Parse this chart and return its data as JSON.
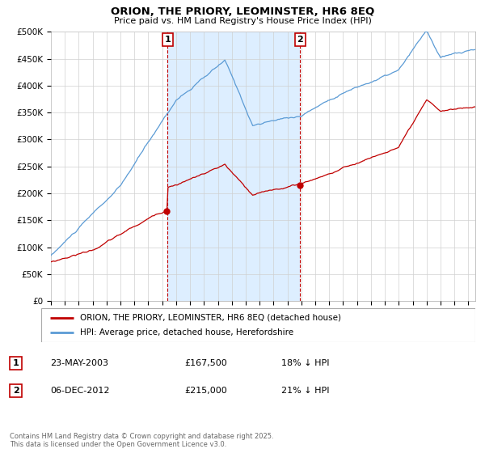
{
  "title": "ORION, THE PRIORY, LEOMINSTER, HR6 8EQ",
  "subtitle": "Price paid vs. HM Land Registry's House Price Index (HPI)",
  "ylim": [
    0,
    500000
  ],
  "yticks": [
    0,
    50000,
    100000,
    150000,
    200000,
    250000,
    300000,
    350000,
    400000,
    450000,
    500000
  ],
  "ytick_labels": [
    "£0",
    "£50K",
    "£100K",
    "£150K",
    "£200K",
    "£250K",
    "£300K",
    "£350K",
    "£400K",
    "£450K",
    "£500K"
  ],
  "hpi_color": "#5b9bd5",
  "price_color": "#c00000",
  "annotation_box_color": "#c00000",
  "grid_color": "#d0d0d0",
  "background_color": "#ffffff",
  "shade_color": "#ddeeff",
  "legend_label_price": "ORION, THE PRIORY, LEOMINSTER, HR6 8EQ (detached house)",
  "legend_label_hpi": "HPI: Average price, detached house, Herefordshire",
  "annotation1_label": "1",
  "annotation1_date": "23-MAY-2003",
  "annotation1_price": "£167,500",
  "annotation1_note": "18% ↓ HPI",
  "annotation2_label": "2",
  "annotation2_date": "06-DEC-2012",
  "annotation2_price": "£215,000",
  "annotation2_note": "21% ↓ HPI",
  "footnote": "Contains HM Land Registry data © Crown copyright and database right 2025.\nThis data is licensed under the Open Government Licence v3.0.",
  "sale1_year": 2003.38,
  "sale1_value": 167500,
  "sale2_year": 2012.92,
  "sale2_value": 215000,
  "xlim_start": 1995,
  "xlim_end": 2025.5
}
